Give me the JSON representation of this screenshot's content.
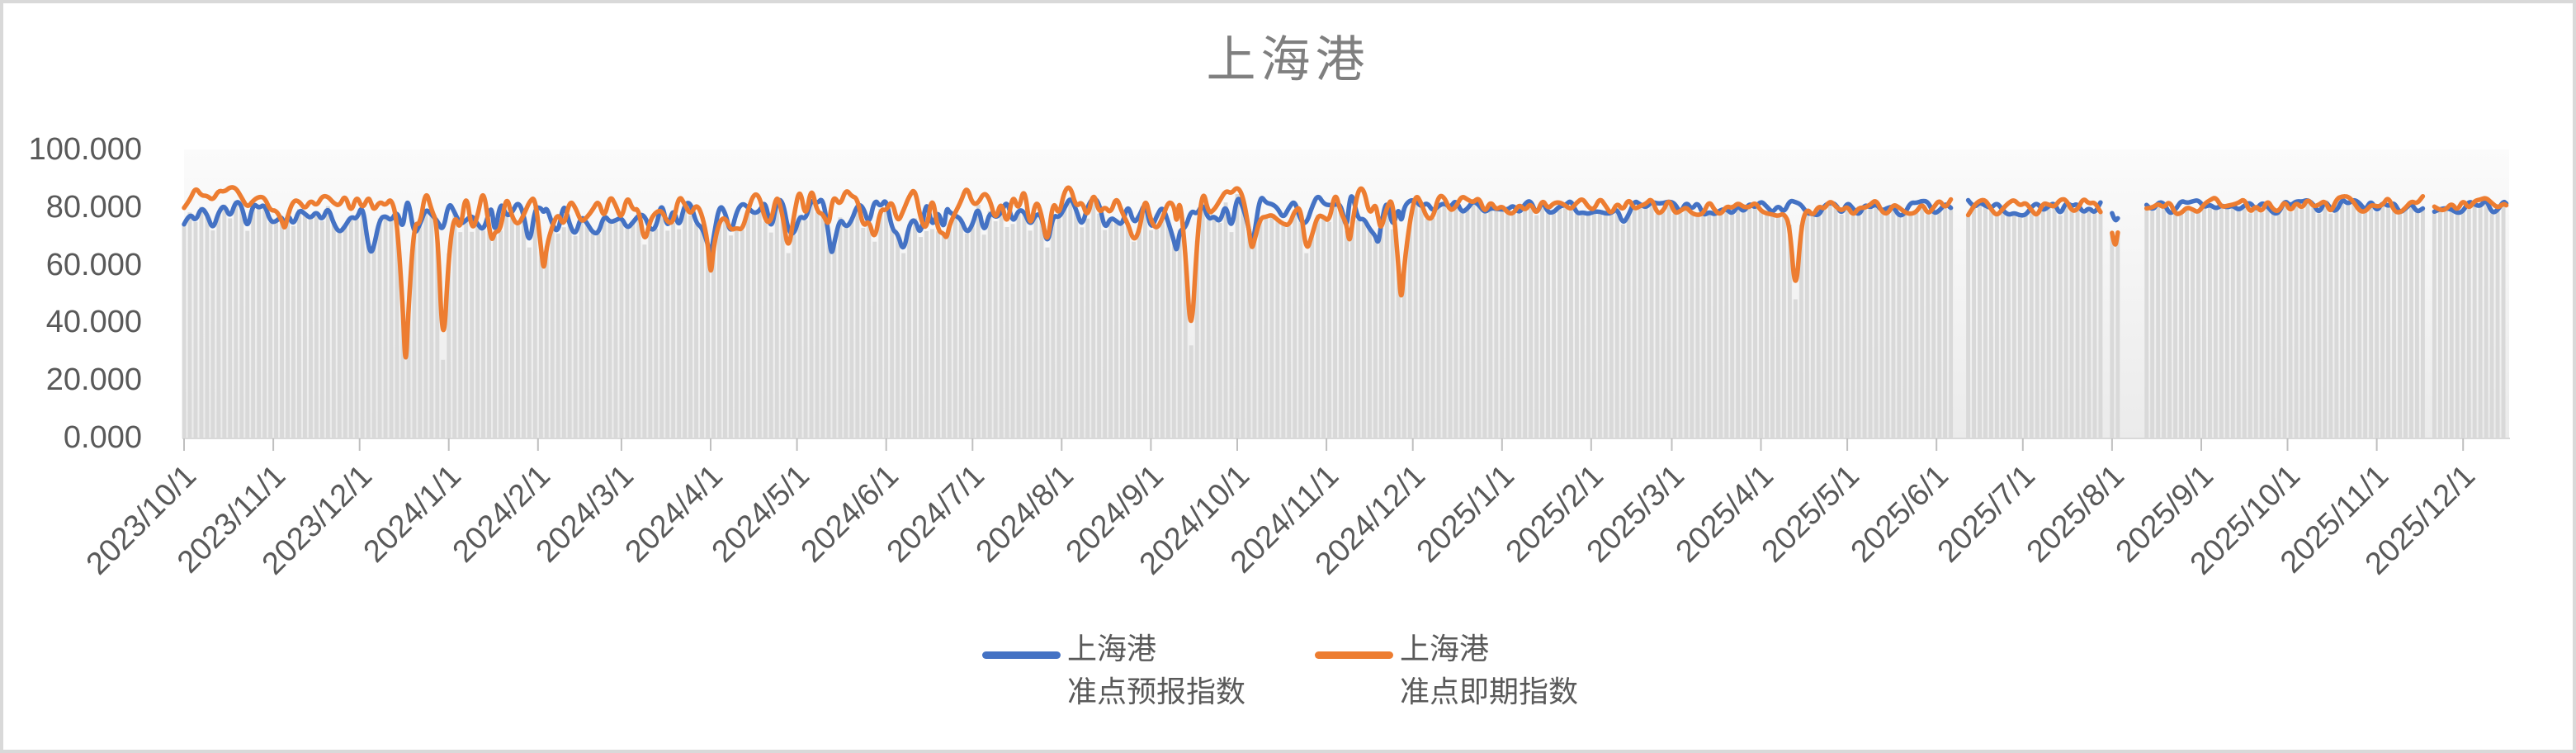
{
  "title": "上海港",
  "chart_data": {
    "type": "line",
    "description": "Two smoothed daily line series (punctuality indices for Shanghai Port) drawn over thin light-gray daily background columns; no gridlines; legend at bottom center.",
    "start_date": "2023/10/1",
    "end_date": "2025/12/16",
    "total_days": 808,
    "sample_step_days": 2,
    "ylim": [
      0,
      100
    ],
    "grid": false,
    "legend_position": "bottom-center",
    "y_axis": {
      "labels": [
        "100.000",
        "80.000",
        "60.000",
        "40.000",
        "20.000",
        "0.000"
      ],
      "values": [
        100,
        80,
        60,
        40,
        20,
        0
      ]
    },
    "x_axis": {
      "labels": [
        "2023/10/1",
        "2023/11/1",
        "2023/12/1",
        "2024/1/1",
        "2024/2/1",
        "2024/3/1",
        "2024/4/1",
        "2024/5/1",
        "2024/6/1",
        "2024/7/1",
        "2024/8/1",
        "2024/9/1",
        "2024/10/1",
        "2024/11/1",
        "2024/12/1",
        "2025/1/1",
        "2025/2/1",
        "2025/3/1",
        "2025/4/1",
        "2025/5/1",
        "2025/6/1",
        "2025/7/1",
        "2025/8/1",
        "2025/9/1",
        "2025/10/1",
        "2025/11/1",
        "2025/12/1"
      ],
      "day_offsets": [
        0,
        31,
        61,
        92,
        123,
        152,
        183,
        213,
        244,
        274,
        305,
        336,
        366,
        397,
        427,
        458,
        489,
        517,
        548,
        578,
        609,
        639,
        670,
        701,
        731,
        762,
        792
      ]
    },
    "gaps": [
      [
        615.5,
        620
      ],
      [
        667.5,
        669.5
      ],
      [
        673,
        681.5
      ],
      [
        779,
        781
      ]
    ],
    "background_bars": {
      "color": "#d9d9d9",
      "rule": "thin column per sample day from 0 up to the lower of the two series"
    },
    "series": [
      {
        "name": "上海港 准点预报指数",
        "name_lines": [
          "上海港",
          "准点预报指数"
        ],
        "color": "#4472C4",
        "max": 88,
        "baseline": [
          [
            0,
            77.5
          ],
          [
            30,
            76.5
          ],
          [
            60,
            75.5
          ],
          [
            100,
            76
          ],
          [
            150,
            77
          ],
          [
            250,
            76.5
          ],
          [
            330,
            77.5
          ],
          [
            420,
            78
          ],
          [
            440,
            80
          ],
          [
            600,
            79.5
          ],
          [
            700,
            80
          ],
          [
            808,
            80.5
          ]
        ],
        "noise_amp": [
          [
            0,
            5.5
          ],
          [
            58,
            5.5
          ],
          [
            64,
            7
          ],
          [
            418,
            7
          ],
          [
            438,
            3
          ],
          [
            600,
            2.8
          ],
          [
            808,
            2.6
          ]
        ],
        "dips": [
          [
            65,
            64
          ],
          [
            120,
            66
          ],
          [
            183,
            63
          ],
          [
            225,
            63
          ],
          [
            250,
            64
          ],
          [
            300,
            66
          ],
          [
            345,
            64
          ],
          [
            371,
            66
          ],
          [
            415,
            67
          ],
          [
            500,
            74
          ],
          [
            671,
            75
          ]
        ]
      },
      {
        "name": "上海港 准点即期指数",
        "name_lines": [
          "上海港",
          "准点即期指数"
        ],
        "color": "#ED7D31",
        "max": 90,
        "baseline": [
          [
            0,
            83.5
          ],
          [
            50,
            82.5
          ],
          [
            65,
            78.5
          ],
          [
            100,
            79
          ],
          [
            150,
            80
          ],
          [
            250,
            79.5
          ],
          [
            330,
            80
          ],
          [
            420,
            79.5
          ],
          [
            440,
            80.5
          ],
          [
            600,
            79.5
          ],
          [
            700,
            80.5
          ],
          [
            808,
            81
          ]
        ],
        "noise_amp": [
          [
            0,
            4
          ],
          [
            58,
            4.5
          ],
          [
            64,
            8
          ],
          [
            418,
            8
          ],
          [
            438,
            3.5
          ],
          [
            600,
            3.2
          ],
          [
            808,
            3
          ]
        ],
        "dips": [
          [
            35,
            72
          ],
          [
            77,
            22
          ],
          [
            90,
            27
          ],
          [
            107,
            68
          ],
          [
            125,
            57
          ],
          [
            160,
            67
          ],
          [
            183,
            55
          ],
          [
            210,
            64
          ],
          [
            240,
            68
          ],
          [
            265,
            69
          ],
          [
            300,
            66
          ],
          [
            330,
            68
          ],
          [
            350,
            32
          ],
          [
            371,
            65
          ],
          [
            390,
            64
          ],
          [
            405,
            67
          ],
          [
            423,
            46
          ],
          [
            560,
            48
          ],
          [
            671,
            65
          ]
        ]
      }
    ],
    "colors": {
      "axis_text": "#595959",
      "title_text": "#7f7f7f",
      "axis_line": "#d9d9d9",
      "tick": "#bfbfbf",
      "plot_bg_top": "#fbfbfb",
      "plot_bg_bottom": "#ebebeb",
      "frame": "#d9d9d9"
    }
  }
}
